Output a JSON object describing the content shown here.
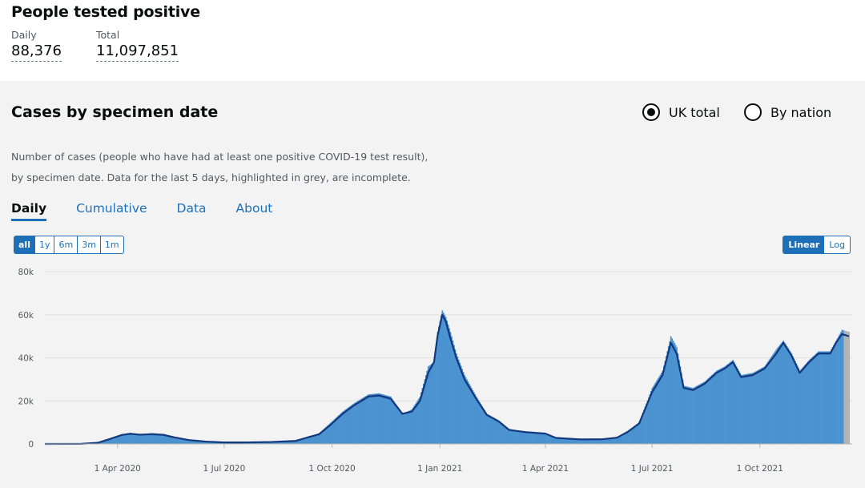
{
  "headline": {
    "title": "People tested positive",
    "daily_label": "Daily",
    "daily_value": "88,376",
    "total_label": "Total",
    "total_value": "11,097,851"
  },
  "card": {
    "title": "Cases by specimen date",
    "radio_uk": "UK total",
    "radio_nation": "By nation",
    "selected": "UK total",
    "description_1": "Number of cases (people who have had at least one positive COVID-19 test result),",
    "description_2": "by specimen date. Data for the last 5 days, highlighted in grey, are incomplete.",
    "tabs": [
      "Daily",
      "Cumulative",
      "Data",
      "About"
    ],
    "active_tab": "Daily",
    "range_buttons": [
      "all",
      "1y",
      "6m",
      "3m",
      "1m"
    ],
    "active_range": "all",
    "scale_buttons": [
      "Linear",
      "Log"
    ],
    "active_scale": "Linear"
  },
  "colors": {
    "bar": "#4b93d0",
    "incomplete_bar": "#b1b4b6",
    "average_line": "#12387e",
    "accent": "#1d70b8"
  },
  "chart_data": {
    "type": "bar",
    "title": "",
    "xlabel": "",
    "ylabel": "",
    "ylim": [
      0,
      80000
    ],
    "yticks": [
      0,
      20000,
      40000,
      60000,
      80000
    ],
    "ytick_labels": [
      "0",
      "20k",
      "40k",
      "60k",
      "80k"
    ],
    "xticks": [
      "2020-04-01",
      "2020-07-01",
      "2020-10-01",
      "2021-01-01",
      "2021-04-01",
      "2021-07-01",
      "2021-10-01"
    ],
    "xtick_labels": [
      "1 Apr 2020",
      "1 Jul 2020",
      "1 Oct 2020",
      "1 Jan 2021",
      "1 Apr 2021",
      "1 Jul 2021",
      "1 Oct 2021"
    ],
    "x_range": [
      "2020-01-30",
      "2021-12-16"
    ],
    "grid": true,
    "incomplete_days": 5,
    "series": [
      {
        "name": "",
        "kind": "bars",
        "points": [
          [
            "2020-01-30",
            0
          ],
          [
            "2020-03-01",
            50
          ],
          [
            "2020-03-15",
            600
          ],
          [
            "2020-03-25",
            2500
          ],
          [
            "2020-04-05",
            4500
          ],
          [
            "2020-04-12",
            5200
          ],
          [
            "2020-04-20",
            4400
          ],
          [
            "2020-04-30",
            5000
          ],
          [
            "2020-05-10",
            4700
          ],
          [
            "2020-05-20",
            3200
          ],
          [
            "2020-06-01",
            2000
          ],
          [
            "2020-06-15",
            1200
          ],
          [
            "2020-07-01",
            800
          ],
          [
            "2020-07-20",
            800
          ],
          [
            "2020-08-10",
            1000
          ],
          [
            "2020-08-31",
            1600
          ],
          [
            "2020-09-10",
            3200
          ],
          [
            "2020-09-20",
            5000
          ],
          [
            "2020-09-30",
            10000
          ],
          [
            "2020-10-10",
            15000
          ],
          [
            "2020-10-20",
            19000
          ],
          [
            "2020-11-01",
            23000
          ],
          [
            "2020-11-10",
            23500
          ],
          [
            "2020-11-20",
            22000
          ],
          [
            "2020-11-30",
            14000
          ],
          [
            "2020-12-08",
            16000
          ],
          [
            "2020-12-15",
            22000
          ],
          [
            "2020-12-22",
            36000
          ],
          [
            "2020-12-27",
            38000
          ],
          [
            "2020-12-30",
            52000
          ],
          [
            "2021-01-03",
            62000
          ],
          [
            "2021-01-06",
            59000
          ],
          [
            "2021-01-10",
            52000
          ],
          [
            "2021-01-15",
            42000
          ],
          [
            "2021-01-22",
            32000
          ],
          [
            "2021-02-01",
            22000
          ],
          [
            "2021-02-10",
            14000
          ],
          [
            "2021-02-20",
            11000
          ],
          [
            "2021-03-01",
            7000
          ],
          [
            "2021-03-15",
            5500
          ],
          [
            "2021-04-01",
            5000
          ],
          [
            "2021-04-10",
            3000
          ],
          [
            "2021-05-01",
            2200
          ],
          [
            "2021-05-20",
            2300
          ],
          [
            "2021-06-01",
            3000
          ],
          [
            "2021-06-10",
            6000
          ],
          [
            "2021-06-20",
            10000
          ],
          [
            "2021-07-01",
            26000
          ],
          [
            "2021-07-10",
            34000
          ],
          [
            "2021-07-17",
            50000
          ],
          [
            "2021-07-22",
            45000
          ],
          [
            "2021-07-28",
            27000
          ],
          [
            "2021-08-05",
            26000
          ],
          [
            "2021-08-15",
            29000
          ],
          [
            "2021-08-25",
            34000
          ],
          [
            "2021-09-01",
            36000
          ],
          [
            "2021-09-08",
            39000
          ],
          [
            "2021-09-15",
            32000
          ],
          [
            "2021-09-25",
            33000
          ],
          [
            "2021-10-05",
            36000
          ],
          [
            "2021-10-15",
            44000
          ],
          [
            "2021-10-21",
            48000
          ],
          [
            "2021-10-28",
            42000
          ],
          [
            "2021-11-04",
            34000
          ],
          [
            "2021-11-12",
            39000
          ],
          [
            "2021-11-20",
            43000
          ],
          [
            "2021-11-30",
            43000
          ],
          [
            "2021-12-05",
            48000
          ],
          [
            "2021-12-10",
            53000
          ],
          [
            "2021-12-16",
            52000
          ]
        ]
      },
      {
        "name": "",
        "kind": "average-line",
        "points": [
          [
            "2020-01-30",
            0
          ],
          [
            "2020-03-01",
            50
          ],
          [
            "2020-03-15",
            500
          ],
          [
            "2020-03-25",
            2200
          ],
          [
            "2020-04-05",
            4200
          ],
          [
            "2020-04-12",
            4700
          ],
          [
            "2020-04-20",
            4300
          ],
          [
            "2020-04-30",
            4500
          ],
          [
            "2020-05-10",
            4200
          ],
          [
            "2020-05-20",
            3000
          ],
          [
            "2020-06-01",
            1800
          ],
          [
            "2020-06-15",
            1100
          ],
          [
            "2020-07-01",
            700
          ],
          [
            "2020-07-20",
            700
          ],
          [
            "2020-08-10",
            900
          ],
          [
            "2020-08-31",
            1400
          ],
          [
            "2020-09-10",
            3000
          ],
          [
            "2020-09-20",
            4500
          ],
          [
            "2020-09-30",
            9000
          ],
          [
            "2020-10-10",
            14000
          ],
          [
            "2020-10-20",
            18000
          ],
          [
            "2020-11-01",
            22000
          ],
          [
            "2020-11-10",
            22500
          ],
          [
            "2020-11-20",
            21000
          ],
          [
            "2020-11-30",
            14000
          ],
          [
            "2020-12-08",
            15000
          ],
          [
            "2020-12-15",
            20000
          ],
          [
            "2020-12-22",
            33000
          ],
          [
            "2020-12-27",
            38000
          ],
          [
            "2020-12-30",
            50000
          ],
          [
            "2021-01-03",
            60000
          ],
          [
            "2021-01-06",
            57000
          ],
          [
            "2021-01-10",
            49000
          ],
          [
            "2021-01-15",
            40000
          ],
          [
            "2021-01-22",
            30000
          ],
          [
            "2021-02-01",
            21000
          ],
          [
            "2021-02-10",
            13500
          ],
          [
            "2021-02-20",
            10500
          ],
          [
            "2021-03-01",
            6500
          ],
          [
            "2021-03-15",
            5500
          ],
          [
            "2021-04-01",
            4800
          ],
          [
            "2021-04-10",
            2800
          ],
          [
            "2021-05-01",
            2100
          ],
          [
            "2021-05-20",
            2200
          ],
          [
            "2021-06-01",
            2900
          ],
          [
            "2021-06-10",
            5500
          ],
          [
            "2021-06-20",
            9500
          ],
          [
            "2021-07-01",
            24000
          ],
          [
            "2021-07-10",
            32000
          ],
          [
            "2021-07-17",
            47000
          ],
          [
            "2021-07-22",
            42000
          ],
          [
            "2021-07-28",
            26000
          ],
          [
            "2021-08-05",
            25000
          ],
          [
            "2021-08-15",
            28000
          ],
          [
            "2021-08-25",
            33000
          ],
          [
            "2021-09-01",
            35000
          ],
          [
            "2021-09-08",
            38000
          ],
          [
            "2021-09-15",
            31000
          ],
          [
            "2021-09-25",
            32000
          ],
          [
            "2021-10-05",
            35000
          ],
          [
            "2021-10-15",
            42000
          ],
          [
            "2021-10-21",
            47000
          ],
          [
            "2021-10-28",
            41000
          ],
          [
            "2021-11-04",
            33000
          ],
          [
            "2021-11-12",
            38000
          ],
          [
            "2021-11-20",
            42000
          ],
          [
            "2021-11-30",
            42000
          ],
          [
            "2021-12-05",
            47000
          ],
          [
            "2021-12-10",
            51000
          ],
          [
            "2021-12-16",
            50000
          ]
        ]
      }
    ]
  }
}
